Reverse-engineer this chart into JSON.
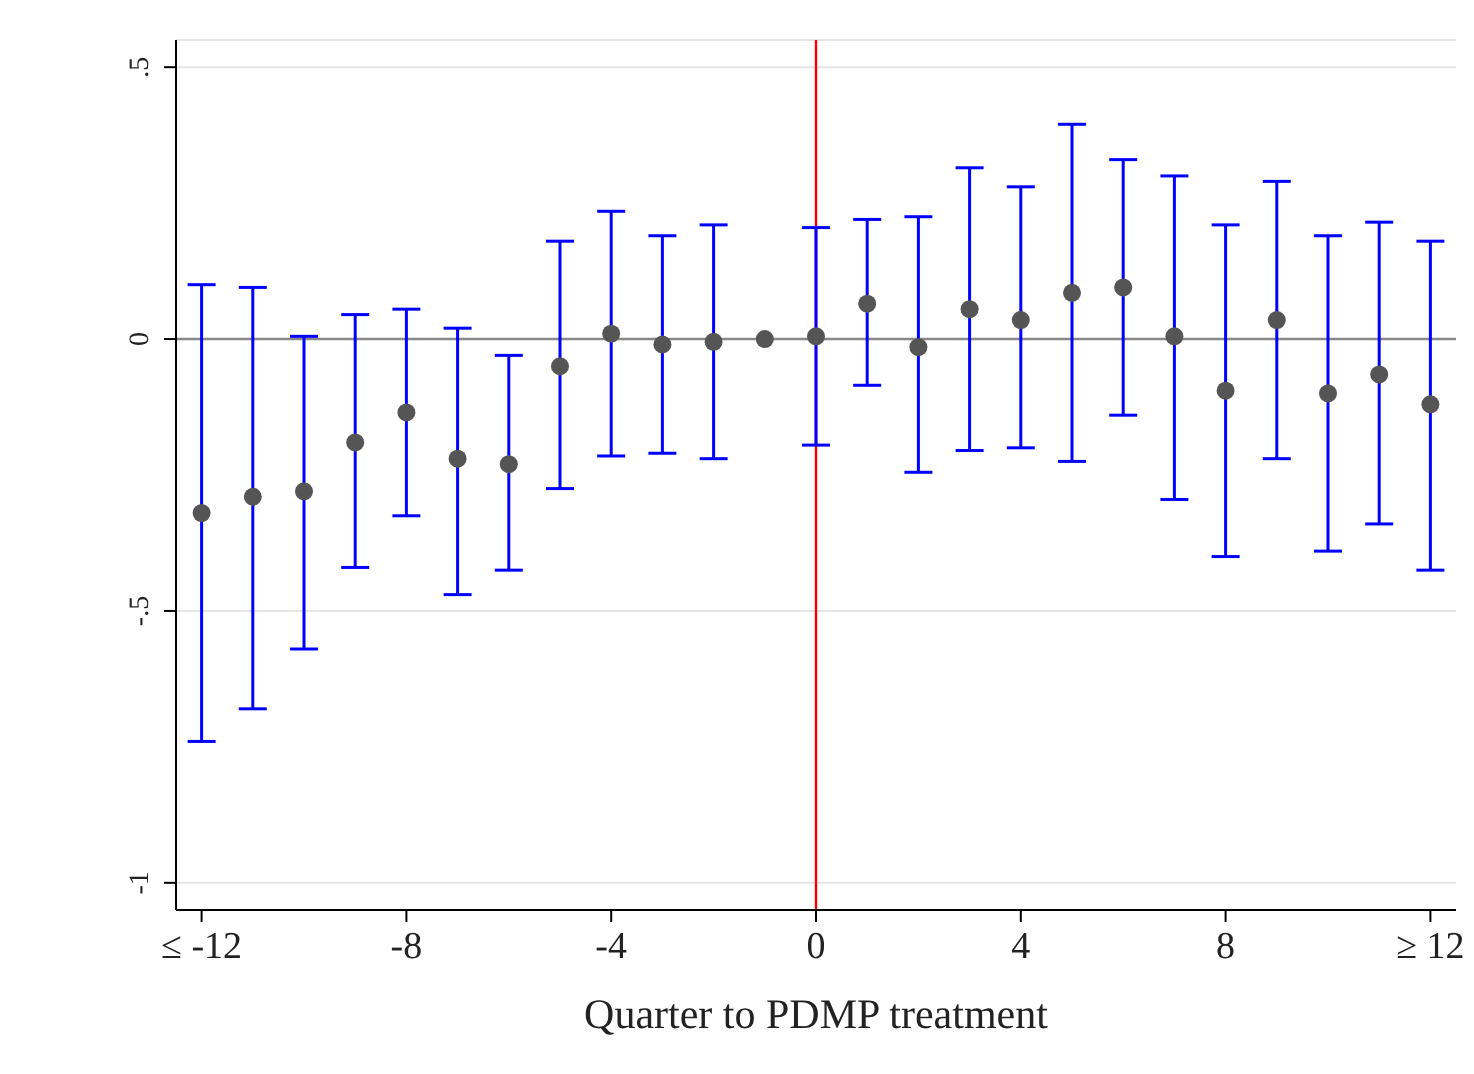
{
  "chart_data": {
    "type": "scatter",
    "xlabel": "Quarter to PDMP treatment",
    "x": [
      -12,
      -11,
      -10,
      -9,
      -8,
      -7,
      -6,
      -5,
      -4,
      -3,
      -2,
      -1,
      0,
      1,
      2,
      3,
      4,
      5,
      6,
      7,
      8,
      9,
      10,
      11,
      12
    ],
    "series": [
      {
        "color": "#555555",
        "values": [
          -0.32,
          -0.29,
          -0.28,
          -0.19,
          -0.135,
          -0.22,
          -0.23,
          -0.05,
          0.01,
          -0.01,
          -0.005,
          0,
          0.005,
          0.065,
          -0.015,
          0.055,
          0.035,
          0.085,
          0.095,
          0.005,
          -0.095,
          0.035,
          -0.1,
          -0.065,
          -0.12
        ],
        "errors": [
          [
            -0.74,
            0.1
          ],
          [
            -0.68,
            0.095
          ],
          [
            -0.57,
            0.005
          ],
          [
            -0.42,
            0.045
          ],
          [
            -0.325,
            0.055
          ],
          [
            -0.47,
            0.02
          ],
          [
            -0.425,
            -0.03
          ],
          [
            -0.275,
            0.18
          ],
          [
            -0.215,
            0.235
          ],
          [
            -0.21,
            0.19
          ],
          [
            -0.22,
            0.21
          ],
          null,
          [
            -0.195,
            0.205
          ],
          [
            -0.085,
            0.22
          ],
          [
            -0.245,
            0.225
          ],
          [
            -0.205,
            0.315
          ],
          [
            -0.2,
            0.28
          ],
          [
            -0.225,
            0.395
          ],
          [
            -0.14,
            0.33
          ],
          [
            -0.295,
            0.3
          ],
          [
            -0.4,
            0.21
          ],
          [
            -0.22,
            0.29
          ],
          [
            -0.39,
            0.19
          ],
          [
            -0.34,
            0.215
          ],
          [
            -0.425,
            0.18
          ]
        ]
      }
    ],
    "xlim": [
      -12.5,
      12.5
    ],
    "xticks": [
      {
        "value": -12,
        "label": "≤ -12"
      },
      -8,
      -4,
      0,
      4,
      8,
      {
        "value": 12,
        "label": "≥ 12"
      }
    ],
    "ylim": [
      -1.05,
      0.55
    ],
    "yticks": [
      {
        "value": 0.5,
        "label": ".5"
      },
      0,
      {
        "value": -0.5,
        "label": "-.5"
      },
      -1
    ],
    "ref_lines": [
      {
        "axis": "y",
        "value": 0,
        "color": "#888888"
      },
      {
        "axis": "x",
        "value": 0,
        "color": "#ff0000"
      }
    ],
    "grid": "y",
    "marker": "circle"
  }
}
